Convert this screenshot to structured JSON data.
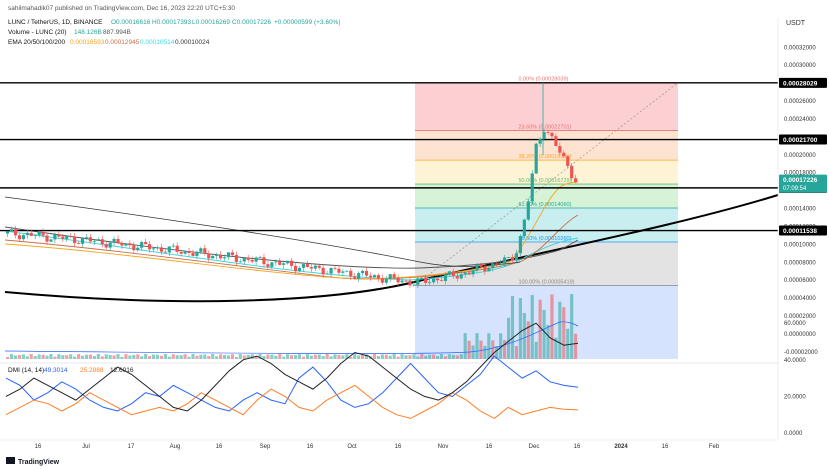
{
  "header": {
    "attribution": "sahilmahadik07 published on TradingView.com, Dec 16, 2023 22:20 UTC+5:30",
    "currency": "USDT",
    "symbol_line": "LUNC / TetherUS, 1D, BINANCE",
    "ohlc": [
      "O0.00016616",
      "H0.00017393",
      "L0.00016269",
      "C0.00017226",
      "+0.00000599 (+3.60%)"
    ],
    "volume_label": "Volume - LUNC (20)",
    "volume_values": [
      "148.126B",
      "887.994B"
    ],
    "ema_label": "EMA 20/50/100/200",
    "ema_values": [
      "0.00016593",
      "0.00012945",
      "0.00010514",
      "0.00010024"
    ],
    "logo": "TradingView"
  },
  "colors": {
    "bull": "#26a69a",
    "bear": "#ef5350",
    "ema20": "#f5a623",
    "ema50": "#c96f4a",
    "ema100": "#3bd8e2",
    "ema200": "#555555",
    "di_plus": "#2962ff",
    "di_minus": "#ff7f27",
    "adx": "#222222",
    "fib_0_236": "#fccfd2",
    "fib_236_382": "#fde3d0",
    "fib_382_50": "#fff3d6",
    "fib_50_618": "#d6f3d8",
    "fib_618_786": "#c8eef0",
    "fib_786_1": "#e3e3e3",
    "volume_zone": "#d5e3ff"
  },
  "chart_data": {
    "type": "candlestick",
    "price_axis": {
      "ticks": [
        "0.00032000",
        "0.00030000",
        "0.00028000",
        "0.00026000",
        "0.00024000",
        "0.00022000",
        "0.00020000",
        "0.00018000",
        "0.00014000",
        "0.00012000",
        "0.00010000",
        "0.00008000",
        "0.00006000",
        "0.00004000",
        "0.00002000",
        "0.00000000",
        "-0.00002000"
      ],
      "range": [
        -2.5e-05,
        0.000335
      ]
    },
    "x_axis": {
      "labels": [
        "16",
        "Jul",
        "17",
        "Aug",
        "16",
        "Sep",
        "16",
        "Oct",
        "16",
        "Nov",
        "16",
        "Dec",
        "16",
        "2024",
        "16",
        "Feb"
      ]
    },
    "highlighted_prices": [
      {
        "value": 0.00028029,
        "label": "0.00028029"
      },
      {
        "value": 0.000217,
        "label": "0.00021700"
      },
      {
        "value": 0.00016301,
        "label": "0.00016301"
      },
      {
        "value": 0.00011538,
        "label": "0.00011538"
      }
    ],
    "current_price": {
      "value": 0.00017226,
      "label": "0.00017226",
      "countdown": "07:09:54"
    },
    "fib_levels": [
      {
        "ratio": "0.00%",
        "value": 0.00028039,
        "label": "0.00% (0.00028039)"
      },
      {
        "ratio": "23.60%",
        "value": 0.00022701,
        "label": "23.60% (0.00022701)"
      },
      {
        "ratio": "38.20%",
        "value": 0.00019398,
        "label": "38.20% (0.00019398)"
      },
      {
        "ratio": "50.00%",
        "value": 0.00016729,
        "label": "50.00% (0.00016729)"
      },
      {
        "ratio": "61.80%",
        "value": 0.0001406,
        "label": "61.80% (0.00014060)"
      },
      {
        "ratio": "78.60%",
        "value": 0.0001026,
        "label": "78.60% (0.00010260)"
      },
      {
        "ratio": "100.00%",
        "value": 5.419e-05,
        "label": "100.00% (0.00005419)"
      }
    ],
    "dmi": {
      "label": "DMI (14, 14)",
      "values": [
        "49.3014",
        "25.2888",
        "12.6016"
      ],
      "axis_ticks": [
        "60.0000",
        "40.0000",
        "20.0000",
        "0.0000"
      ],
      "range": [
        -5,
        66
      ]
    }
  }
}
